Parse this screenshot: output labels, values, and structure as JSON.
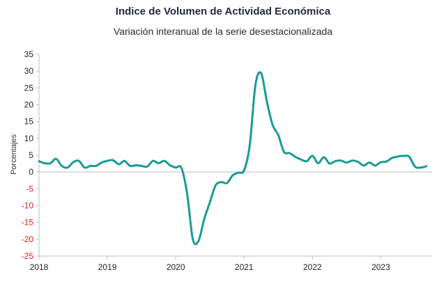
{
  "chart_data": {
    "type": "line",
    "title": "Indice de Volumen de  Actividad Económica",
    "subtitle": "Variación interanual de la serie desestacionalizada",
    "ylabel": "Porcentajes",
    "xlabel": "",
    "ylim": [
      -25,
      35
    ],
    "y_ticks": [
      35,
      30,
      25,
      20,
      15,
      10,
      5,
      0,
      -5,
      -10,
      -15,
      -20,
      -25
    ],
    "x_ticks": [
      "2018",
      "2019",
      "2020",
      "2021",
      "2022",
      "2023"
    ],
    "x_range": [
      2018.0,
      2023.75
    ],
    "grid": false,
    "colors": {
      "line": "#1a9a96",
      "negative_tick": "#e0201b",
      "positive_tick": "#222222",
      "axis": "#bfbfbf"
    },
    "series": [
      {
        "x": [
          2018.0,
          2018.083,
          2018.167,
          2018.25,
          2018.333,
          2018.417,
          2018.5,
          2018.583,
          2018.667,
          2018.75,
          2018.833,
          2018.917,
          2019.0,
          2019.083,
          2019.167,
          2019.25,
          2019.333,
          2019.417,
          2019.5,
          2019.583,
          2019.667,
          2019.75,
          2019.833,
          2019.917,
          2020.0,
          2020.083,
          2020.167,
          2020.25,
          2020.333,
          2020.417,
          2020.5,
          2020.583,
          2020.667,
          2020.75,
          2020.833,
          2020.917,
          2021.0,
          2021.083,
          2021.167,
          2021.25,
          2021.333,
          2021.417,
          2021.5,
          2021.583,
          2021.667,
          2021.75,
          2021.833,
          2021.917,
          2022.0,
          2022.083,
          2022.167,
          2022.25,
          2022.333,
          2022.417,
          2022.5,
          2022.583,
          2022.667,
          2022.75,
          2022.833,
          2022.917,
          2023.0,
          2023.083,
          2023.167,
          2023.25,
          2023.333,
          2023.417,
          2023.5,
          2023.583,
          2023.667
        ],
        "values": [
          3.2,
          2.6,
          2.6,
          3.9,
          1.8,
          1.3,
          2.9,
          3.3,
          1.3,
          1.8,
          1.8,
          2.8,
          3.3,
          3.5,
          2.3,
          3.3,
          1.8,
          2.0,
          1.8,
          1.6,
          3.3,
          2.6,
          3.3,
          2.0,
          1.3,
          1.2,
          -6.5,
          -20.0,
          -20.5,
          -14.0,
          -9.0,
          -4.0,
          -3.0,
          -3.3,
          -1.0,
          -0.2,
          0.5,
          8.0,
          26.0,
          29.3,
          21.0,
          14.0,
          11.0,
          6.0,
          5.6,
          4.5,
          3.7,
          3.2,
          4.8,
          2.6,
          4.4,
          2.5,
          3.2,
          3.4,
          2.8,
          3.4,
          3.0,
          1.9,
          2.8,
          1.9,
          2.9,
          3.1,
          4.2,
          4.6,
          4.8,
          4.5,
          1.6,
          1.3,
          1.7
        ]
      }
    ]
  }
}
